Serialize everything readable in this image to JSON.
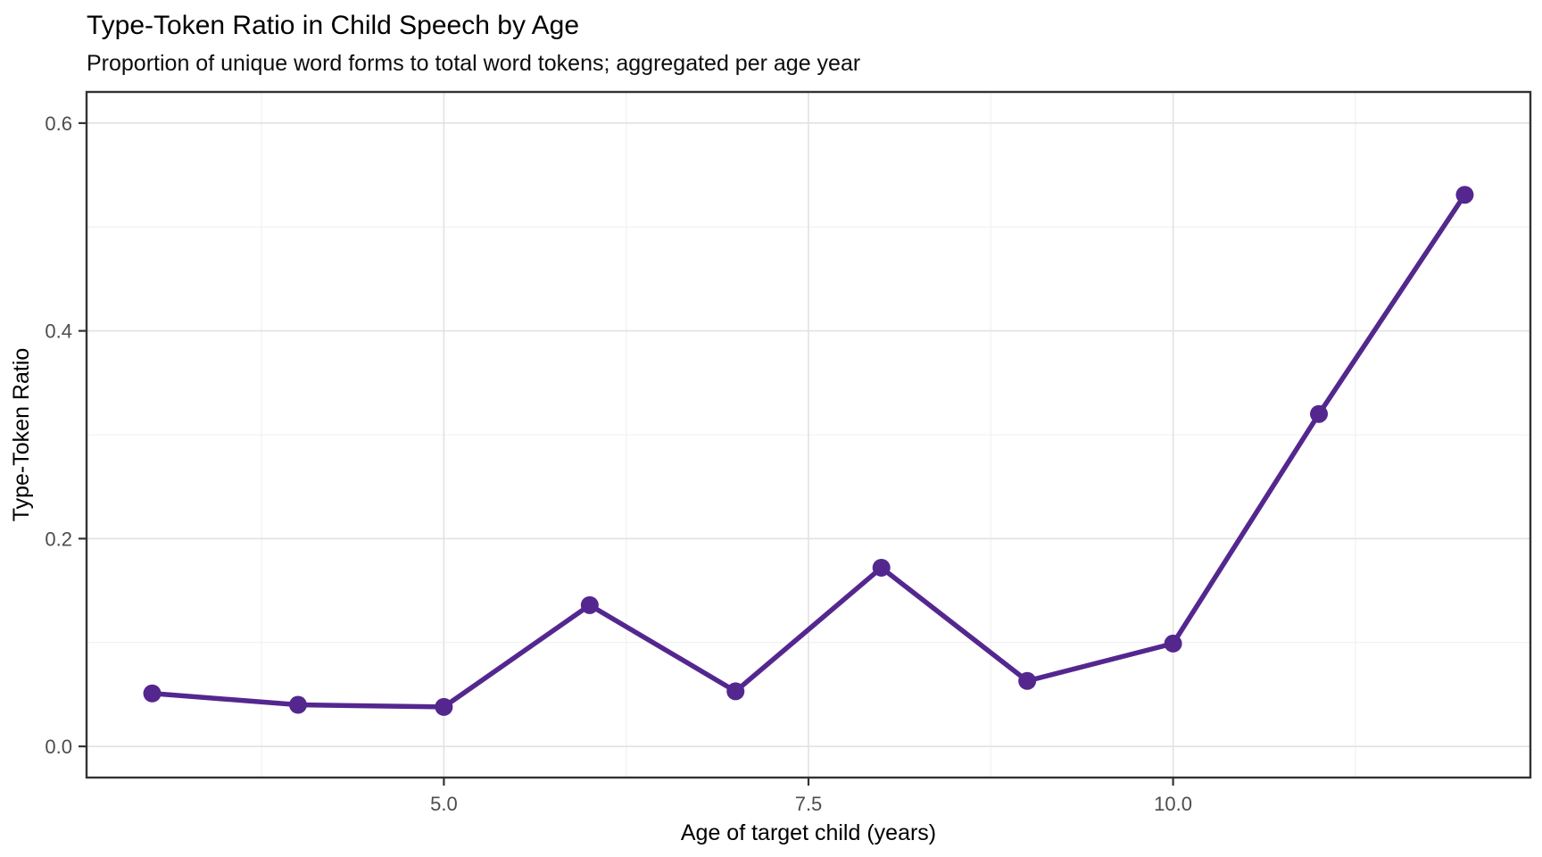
{
  "header": {
    "title": "Type-Token Ratio in Child Speech by Age",
    "subtitle": "Proportion of unique word forms to total word tokens; aggregated per age year"
  },
  "axes": {
    "x_title": "Age of target child (years)",
    "y_title": "Type-Token Ratio"
  },
  "colors": {
    "accent": "#54278f",
    "grid_major": "#e3e3e3",
    "grid_minor": "#f0f0f0",
    "panel_border": "#333333",
    "tick_mark": "#333333",
    "tick_label": "#4d4d4d",
    "text": "#000000",
    "background": "#ffffff"
  },
  "chart_data": {
    "type": "line",
    "title": "Type-Token Ratio in Child Speech by Age",
    "subtitle": "Proportion of unique word forms to total word tokens; aggregated per age year",
    "xlabel": "Age of target child (years)",
    "ylabel": "Type-Token Ratio",
    "series": [
      {
        "name": "Type-Token Ratio",
        "x": [
          3,
          4,
          5,
          6,
          7,
          8,
          9,
          10,
          11,
          12
        ],
        "y": [
          0.051,
          0.04,
          0.038,
          0.136,
          0.053,
          0.172,
          0.063,
          0.099,
          0.32,
          0.531
        ]
      }
    ],
    "xlim": [
      2.55,
      12.45
    ],
    "ylim": [
      -0.03,
      0.63
    ],
    "x_major_ticks": [
      5.0,
      7.5,
      10.0
    ],
    "x_tick_labels": [
      "5.0",
      "7.5",
      "10.0"
    ],
    "x_minor_ticks": [
      3.75,
      6.25,
      8.75,
      11.25
    ],
    "y_major_ticks": [
      0.0,
      0.2,
      0.4,
      0.6
    ],
    "y_tick_labels": [
      "0.0",
      "0.2",
      "0.4",
      "0.6"
    ],
    "y_minor_ticks": [
      0.1,
      0.3,
      0.5
    ],
    "grid": true,
    "legend_position": "none",
    "marker": "circle",
    "line_color": "#54278f"
  }
}
